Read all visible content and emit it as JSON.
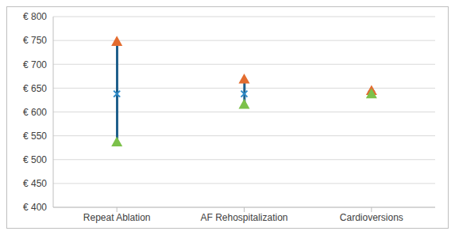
{
  "chart_data": {
    "type": "range",
    "categories": [
      "Repeat Ablation",
      "AF Rehospitalization",
      "Cardioversions"
    ],
    "series": [
      {
        "color": "#2e8bc8",
        "marker": "x",
        "values": [
          638,
          638,
          638
        ]
      },
      {
        "color": "#e36c2f",
        "marker": "triangle",
        "values": [
          748,
          669,
          645
        ]
      },
      {
        "color": "#7cc14a",
        "marker": "triangle",
        "values": [
          537,
          616,
          638
        ]
      }
    ],
    "ylim": [
      400,
      800
    ],
    "yticks": [
      {
        "value": 400,
        "label": "€ 400"
      },
      {
        "value": 450,
        "label": "€ 450"
      },
      {
        "value": 500,
        "label": "€ 500"
      },
      {
        "value": 550,
        "label": "€ 550"
      },
      {
        "value": 600,
        "label": "€ 600"
      },
      {
        "value": 650,
        "label": "€ 650"
      },
      {
        "value": 700,
        "label": "€ 700"
      },
      {
        "value": 750,
        "label": "€ 750"
      },
      {
        "value": 800,
        "label": "€ 800"
      }
    ],
    "grid": true
  }
}
